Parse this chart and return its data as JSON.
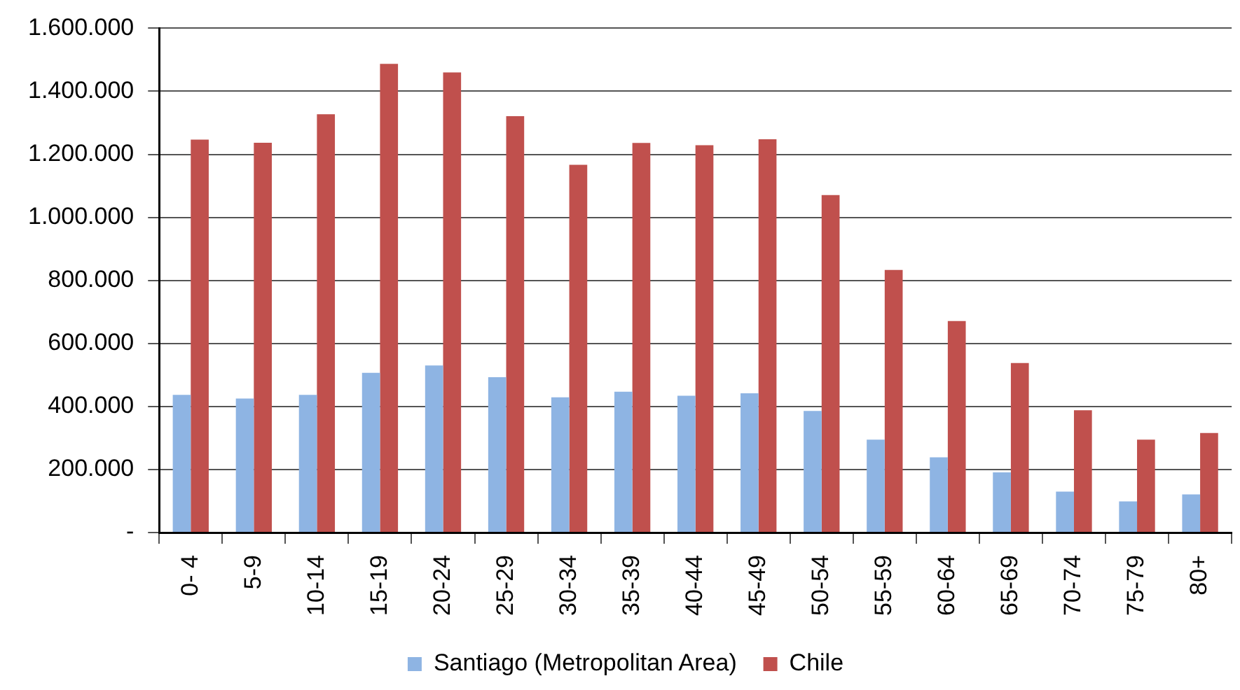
{
  "chart_data": {
    "type": "bar",
    "categories": [
      "0- 4",
      "5-9",
      "10-14",
      "15-19",
      "20-24",
      "25-29",
      "30-34",
      "35-39",
      "40-44",
      "45-49",
      "50-54",
      "55-59",
      "60-64",
      "65-69",
      "70-74",
      "75-79",
      "80+"
    ],
    "series": [
      {
        "name": "Santiago (Metropolitan Area)",
        "color": "#8eb4e3",
        "values": [
          437000,
          425000,
          437000,
          507000,
          530000,
          493000,
          429000,
          447000,
          434000,
          442000,
          386000,
          295000,
          239000,
          191000,
          130000,
          99000,
          121000
        ]
      },
      {
        "name": "Chile",
        "color": "#c0504d",
        "values": [
          1247000,
          1237000,
          1327000,
          1487000,
          1460000,
          1321000,
          1167000,
          1236000,
          1229000,
          1248000,
          1071000,
          833000,
          671000,
          538000,
          388000,
          295000,
          316000
        ]
      }
    ],
    "ylim": [
      0,
      1600000
    ],
    "yticks": [
      {
        "value": 0,
        "label": "-"
      },
      {
        "value": 200000,
        "label": "200.000"
      },
      {
        "value": 400000,
        "label": "400.000"
      },
      {
        "value": 600000,
        "label": "600.000"
      },
      {
        "value": 800000,
        "label": "800.000"
      },
      {
        "value": 1000000,
        "label": "1.000.000"
      },
      {
        "value": 1200000,
        "label": "1.200.000"
      },
      {
        "value": 1400000,
        "label": "1.400.000"
      },
      {
        "value": 1600000,
        "label": "1.600.000"
      }
    ],
    "grid": "y",
    "legend": "bottom"
  }
}
